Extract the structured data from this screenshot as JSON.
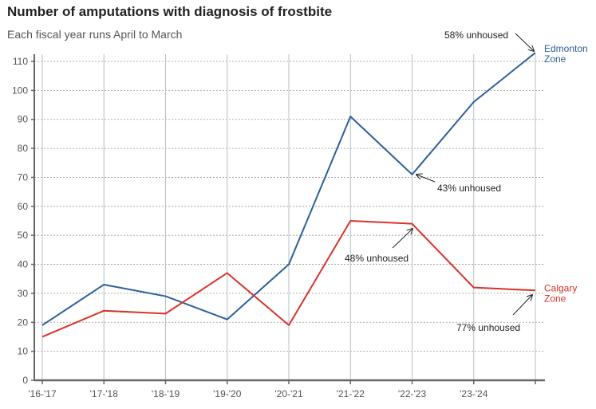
{
  "chart_data": {
    "type": "line",
    "title": "Number of amputations with diagnosis of frostbite",
    "subtitle": "Each fiscal year runs April to March",
    "categories": [
      "'16-'17",
      "'17-'18",
      "'18-'19",
      "'19-'20",
      "'20-'21",
      "'21-'22",
      "'22-'23",
      "'23-'24",
      ""
    ],
    "ylim": [
      0,
      110
    ],
    "yticks": [
      0,
      10,
      20,
      30,
      40,
      50,
      60,
      70,
      80,
      90,
      100,
      110
    ],
    "grid": true,
    "series": [
      {
        "name": "Edmonton Zone",
        "label_lines": [
          "Edmonton",
          "Zone"
        ],
        "color": "#2e5f9a",
        "values": [
          19,
          33,
          29,
          21,
          40,
          91,
          71,
          96,
          113
        ]
      },
      {
        "name": "Calgary Zone",
        "label_lines": [
          "Calgary",
          "Zone"
        ],
        "color": "#d9322a",
        "values": [
          15,
          24,
          23,
          37,
          19,
          55,
          54,
          32,
          31
        ]
      }
    ],
    "annotations": [
      {
        "text": "58% unhoused",
        "series": 0,
        "index": 8
      },
      {
        "text": "43% unhoused",
        "series": 0,
        "index": 6
      },
      {
        "text": "48% unhoused",
        "series": 1,
        "index": 6
      },
      {
        "text": "77% unhoused",
        "series": 1,
        "index": 8
      }
    ]
  }
}
